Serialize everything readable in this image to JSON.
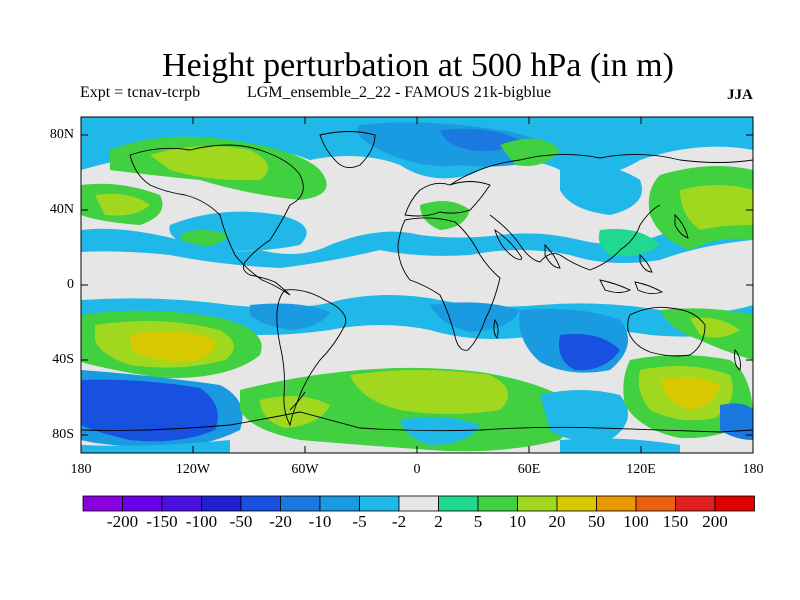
{
  "title": "Height perturbation at 500 hPa (in m)",
  "subtitle": {
    "expt": "Expt = tcnav-tcrpb",
    "run": "LGM_ensemble_2_22 - FAMOUS 21k-bigblue"
  },
  "season": "JJA",
  "axes": {
    "y_ticks": [
      "80N",
      "40N",
      "0",
      "40S",
      "80S"
    ],
    "x_ticks": [
      "180",
      "120W",
      "60W",
      "0",
      "60E",
      "120E",
      "180"
    ]
  },
  "colorbar": {
    "labels": [
      "-200",
      "-150",
      "-100",
      "-50",
      "-20",
      "-10",
      "-5",
      "-2",
      "2",
      "5",
      "10",
      "20",
      "50",
      "100",
      "150",
      "200"
    ],
    "colors": [
      "#8a00e0",
      "#6a00e8",
      "#4a10e0",
      "#2020d0",
      "#1850e0",
      "#1a78e0",
      "#1a9ae0",
      "#20b8e8",
      "#e6e6e6",
      "#20d890",
      "#40d040",
      "#a0d820",
      "#d8c800",
      "#e89800",
      "#e86010",
      "#e02020",
      "#e00000"
    ]
  },
  "field_colors": {
    "neutral": "#e6e6e6",
    "ocean_blue_light": "#20b8e8",
    "ocean_blue": "#1a9ae0",
    "blue_mid": "#1a78e0",
    "blue_dark": "#1850e0",
    "green_teal": "#20d890",
    "green": "#40d040",
    "yellow_green": "#a0d820",
    "yellow": "#d8c800"
  }
}
